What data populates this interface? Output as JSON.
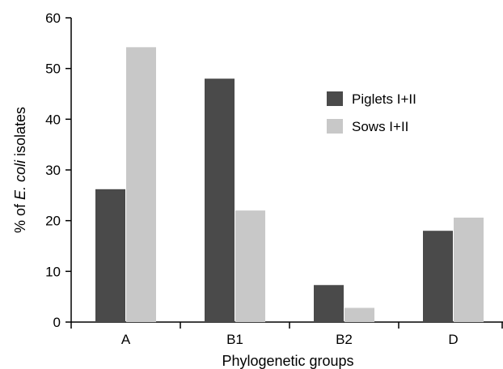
{
  "chart_data": {
    "type": "bar",
    "categories": [
      "A",
      "B1",
      "B2",
      "D"
    ],
    "series": [
      {
        "name": "Piglets I+II",
        "color": "#4a4a4a",
        "values": [
          26.2,
          48.0,
          7.3,
          18.0
        ]
      },
      {
        "name": "Sows I+II",
        "color": "#c8c8c8",
        "values": [
          54.2,
          22.0,
          2.8,
          20.6
        ]
      }
    ],
    "xlabel": "Phylogenetic groups",
    "ylabel": {
      "prefix": "% of ",
      "italic": "E. coli",
      "suffix": " isolates"
    },
    "ylim": [
      0,
      60
    ],
    "yticks": [
      "0",
      "10",
      "20",
      "30",
      "40",
      "50",
      "60"
    ],
    "grid": false,
    "legend_position": "top-right"
  }
}
